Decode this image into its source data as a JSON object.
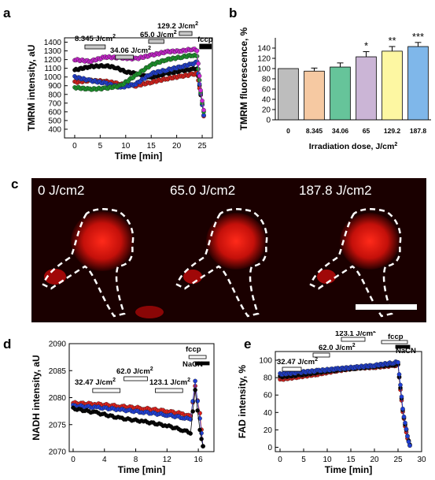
{
  "panel_letters": {
    "a": "a",
    "b": "b",
    "c": "c",
    "d": "d",
    "e": "e"
  },
  "colors": {
    "black": "#000000",
    "red": "#e0201b",
    "blue": "#1f3fd6",
    "green": "#1a9a2a",
    "magenta": "#d024d6"
  },
  "chart_data": [
    {
      "id": "a",
      "type": "scatter",
      "ylabel": "TMRM intensity, aU",
      "xlabel": "Time [min]",
      "xlim": [
        -2,
        27
      ],
      "ylim": [
        300,
        1450
      ],
      "xticks": [
        0,
        5,
        10,
        15,
        20,
        25
      ],
      "yticks": [
        400,
        500,
        600,
        700,
        800,
        900,
        1000,
        1100,
        1200,
        1300,
        1400
      ],
      "annotations": [
        "8.345 J/cm",
        "34.06 J/cm",
        "65.0 J/cm",
        "129.2 J/cm",
        "fccp"
      ],
      "annotation_sup": "2",
      "series": [
        {
          "color": "black",
          "points": [
            [
              0,
              1080
            ],
            [
              3,
              1120
            ],
            [
              6,
              1130
            ],
            [
              8,
              1110
            ],
            [
              10,
              1060
            ],
            [
              12,
              1040
            ],
            [
              15,
              990
            ],
            [
              18,
              1040
            ],
            [
              21,
              1070
            ],
            [
              23,
              1090
            ],
            [
              24,
              1100
            ],
            [
              24.7,
              800
            ],
            [
              25.3,
              560
            ]
          ]
        },
        {
          "color": "red",
          "points": [
            [
              0,
              940
            ],
            [
              3,
              960
            ],
            [
              6,
              950
            ],
            [
              9,
              920
            ],
            [
              12,
              900
            ],
            [
              15,
              940
            ],
            [
              18,
              980
            ],
            [
              21,
              1010
            ],
            [
              23,
              1030
            ],
            [
              24,
              1040
            ],
            [
              24.7,
              800
            ],
            [
              25.3,
              550
            ]
          ]
        },
        {
          "color": "blue",
          "points": [
            [
              0,
              1000
            ],
            [
              3,
              960
            ],
            [
              6,
              930
            ],
            [
              9,
              880
            ],
            [
              12,
              920
            ],
            [
              15,
              1040
            ],
            [
              18,
              1080
            ],
            [
              21,
              1120
            ],
            [
              23,
              1150
            ],
            [
              24,
              1170
            ],
            [
              24.7,
              800
            ],
            [
              25.3,
              560
            ]
          ]
        },
        {
          "color": "green",
          "points": [
            [
              0,
              880
            ],
            [
              3,
              860
            ],
            [
              6,
              870
            ],
            [
              9,
              900
            ],
            [
              12,
              1020
            ],
            [
              15,
              1140
            ],
            [
              18,
              1200
            ],
            [
              21,
              1230
            ],
            [
              23,
              1250
            ],
            [
              24,
              1240
            ],
            [
              24.7,
              820
            ],
            [
              25.3,
              600
            ]
          ]
        },
        {
          "color": "magenta",
          "points": [
            [
              0,
              1200
            ],
            [
              3,
              1180
            ],
            [
              6,
              1230
            ],
            [
              9,
              1220
            ],
            [
              12,
              1210
            ],
            [
              15,
              1250
            ],
            [
              18,
              1290
            ],
            [
              21,
              1300
            ],
            [
              23,
              1320
            ],
            [
              24,
              1310
            ],
            [
              24.7,
              850
            ],
            [
              25.3,
              620
            ]
          ]
        }
      ]
    },
    {
      "id": "b",
      "type": "bar",
      "ylabel": "TMRM fluorescence, %",
      "xlabel": "Irradiation dose,  J/cm",
      "xlabel_sup": "2",
      "ylim": [
        0,
        160
      ],
      "yticks": [
        0,
        20,
        40,
        60,
        80,
        100,
        120,
        140
      ],
      "categories": [
        "0",
        "8.345",
        "34.06",
        "65",
        "129.2",
        "187.8"
      ],
      "values": [
        100,
        95,
        103,
        123,
        134,
        143
      ],
      "errors": [
        0,
        6,
        8,
        10,
        9,
        8
      ],
      "significance": [
        "",
        "",
        "",
        "*",
        "**",
        "***"
      ],
      "bar_colors": [
        "#bdbdbd",
        "#f6c9a2",
        "#66c49a",
        "#cbb5d6",
        "#fdf7a2",
        "#7fb7ea"
      ]
    },
    {
      "id": "d",
      "type": "scatter",
      "ylabel": "NADH intensity, aU",
      "xlabel": "Time [min]",
      "xlim": [
        -0.5,
        18
      ],
      "ylim": [
        2070,
        2090
      ],
      "xticks": [
        0,
        4,
        8,
        12,
        16
      ],
      "yticks": [
        2070,
        2075,
        2080,
        2085,
        2090
      ],
      "annotations": [
        "32.47 J/cm",
        "62.0 J/cm",
        "123.1 J/cm",
        "fccp",
        "NaCN"
      ],
      "annotation_sup": "2",
      "series": [
        {
          "color": "red",
          "points": [
            [
              0,
              2079
            ],
            [
              3,
              2078.8
            ],
            [
              6,
              2078.4
            ],
            [
              9,
              2078
            ],
            [
              12,
              2077.5
            ],
            [
              14,
              2077
            ],
            [
              15,
              2076.5
            ],
            [
              15.6,
              2082
            ],
            [
              16.2,
              2077
            ],
            [
              16.6,
              2071
            ]
          ]
        },
        {
          "color": "blue",
          "points": [
            [
              0,
              2078.5
            ],
            [
              3,
              2078.2
            ],
            [
              6,
              2077.8
            ],
            [
              9,
              2077.3
            ],
            [
              12,
              2076.8
            ],
            [
              14,
              2076.3
            ],
            [
              15,
              2076
            ],
            [
              15.6,
              2083
            ],
            [
              16.2,
              2076
            ],
            [
              16.6,
              2071
            ]
          ]
        },
        {
          "color": "black",
          "points": [
            [
              0,
              2078
            ],
            [
              3,
              2077.2
            ],
            [
              6,
              2076.2
            ],
            [
              9,
              2075.6
            ],
            [
              12,
              2074.8
            ],
            [
              14,
              2074
            ],
            [
              15,
              2073.5
            ],
            [
              15.6,
              2081.5
            ],
            [
              16.2,
              2074
            ],
            [
              16.6,
              2071
            ]
          ]
        }
      ]
    },
    {
      "id": "e",
      "type": "scatter",
      "ylabel": "FAD intensity, %",
      "xlabel": "Time [min]",
      "xlim": [
        -1,
        30
      ],
      "ylim": [
        -5,
        110
      ],
      "xticks": [
        0,
        5,
        10,
        15,
        20,
        25,
        30
      ],
      "yticks": [
        0,
        20,
        40,
        60,
        80,
        100
      ],
      "annotations": [
        "32.47 J/cm",
        "62.0 J/cm",
        "123.1 J/cm",
        "fccp",
        "NaCN"
      ],
      "annotation_sup": "2",
      "series": [
        {
          "color": "red",
          "points": [
            [
              0,
              78
            ],
            [
              4,
              81
            ],
            [
              8,
              84
            ],
            [
              12,
              88
            ],
            [
              16,
              91
            ],
            [
              20,
              92
            ],
            [
              24,
              94
            ],
            [
              25,
              94
            ],
            [
              26,
              40
            ],
            [
              27,
              10
            ],
            [
              27.5,
              2
            ]
          ]
        },
        {
          "color": "black",
          "points": [
            [
              0,
              81
            ],
            [
              4,
              83
            ],
            [
              8,
              86
            ],
            [
              12,
              89
            ],
            [
              16,
              91
            ],
            [
              20,
              93
            ],
            [
              24,
              95
            ],
            [
              25,
              95
            ],
            [
              26,
              42
            ],
            [
              27,
              12
            ],
            [
              27.5,
              3
            ]
          ]
        },
        {
          "color": "blue",
          "points": [
            [
              0,
              84
            ],
            [
              4,
              86
            ],
            [
              8,
              88
            ],
            [
              12,
              90
            ],
            [
              16,
              92
            ],
            [
              20,
              94
            ],
            [
              24,
              97
            ],
            [
              25,
              98
            ],
            [
              26,
              44
            ],
            [
              27,
              12
            ],
            [
              27.5,
              2
            ]
          ]
        }
      ]
    }
  ],
  "micro": {
    "labels": [
      "0 J/cm2",
      "65.0 J/cm2",
      "187.8 J/cm2"
    ]
  }
}
